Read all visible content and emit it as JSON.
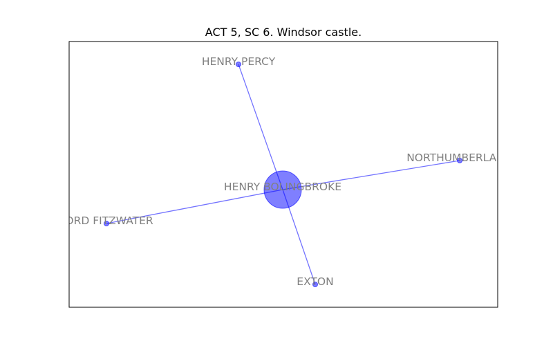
{
  "title": "ACT 5, SC 6. Windsor castle.",
  "nodes": [
    {
      "id": "henry-bolingbroke",
      "label": "HENRY BOLINGBROKE",
      "weight": 4
    },
    {
      "id": "henry-percy",
      "label": "HENRY PERCY",
      "weight": 1
    },
    {
      "id": "northumberland",
      "label": "NORTHUMBERLAND",
      "weight": 1
    },
    {
      "id": "lord-fitzwater",
      "label": "LORD FITZWATER",
      "weight": 1
    },
    {
      "id": "exton",
      "label": "EXTON",
      "weight": 1
    }
  ],
  "edges": [
    [
      "henry-bolingbroke",
      "henry-percy"
    ],
    [
      "henry-bolingbroke",
      "northumberland"
    ],
    [
      "henry-bolingbroke",
      "lord-fitzwater"
    ],
    [
      "henry-bolingbroke",
      "exton"
    ]
  ],
  "colors": {
    "node": "#0000ff",
    "edge": "#0000ff",
    "label": "#808080"
  }
}
